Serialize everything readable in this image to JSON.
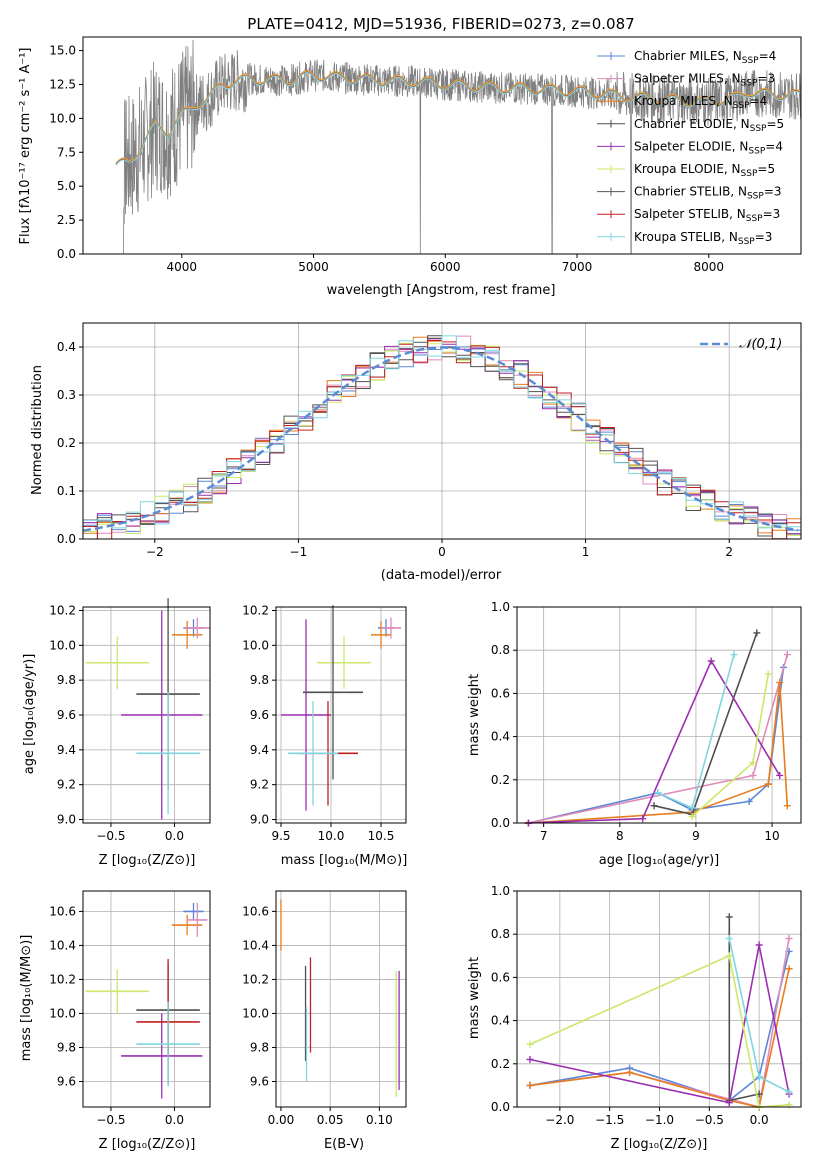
{
  "colors": {
    "chabrier_miles": "#5b87d6",
    "salpeter_miles": "#e08ab8",
    "kroupa_miles": "#e77d1e",
    "chabrier_elodie": "#4f4f4f",
    "salpeter_elodie": "#9a2fb0",
    "kroupa_elodie": "#cbe86a",
    "chabrier_stelib": "#555555",
    "salpeter_stelib": "#c0201e",
    "kroupa_stelib": "#7fd6e0",
    "normal_curve": "#5b8bd4",
    "data_gray": "#808080",
    "grid": "#b0b0b0"
  },
  "chart_data": [
    {
      "id": "spectrum",
      "type": "line",
      "title": "PLATE=0412, MJD=51936, FIBERID=0273, z=0.087",
      "xlabel": "wavelength [Angstrom, rest frame]",
      "ylabel": "Flux [fλ10⁻¹⁷ erg cm⁻² s⁻¹ A⁻¹]",
      "xlim": [
        3250,
        8700
      ],
      "ylim": [
        0,
        16
      ],
      "x_ticks": [
        "4000",
        "5000",
        "6000",
        "7000",
        "8000"
      ],
      "y_ticks": [
        "0.0",
        "2.5",
        "5.0",
        "7.5",
        "10.0",
        "12.5",
        "15.0"
      ],
      "grid": false,
      "legend_placement": "right",
      "series": [
        {
          "name": "Chabrier MILES, N_SSP=4",
          "legend": "Chabrier MILES, N",
          "sub": "SSP",
          "tail": "=4",
          "color_key": "chabrier_miles"
        },
        {
          "name": "Salpeter MILES, N_SSP=3",
          "legend": "Salpeter MILES, N",
          "sub": "SSP",
          "tail": "=3",
          "color_key": "salpeter_miles"
        },
        {
          "name": "Kroupa MILES, N_SSP=4",
          "legend": "Kroupa MILES, N",
          "sub": "SSP",
          "tail": "=4",
          "color_key": "kroupa_miles"
        },
        {
          "name": "Chabrier ELODIE, N_SSP=5",
          "legend": "Chabrier ELODIE, N",
          "sub": "SSP",
          "tail": "=5",
          "color_key": "chabrier_elodie"
        },
        {
          "name": "Salpeter ELODIE, N_SSP=4",
          "legend": "Salpeter ELODIE, N",
          "sub": "SSP",
          "tail": "=4",
          "color_key": "salpeter_elodie"
        },
        {
          "name": "Kroupa ELODIE, N_SSP=5",
          "legend": "Kroupa ELODIE, N",
          "sub": "SSP",
          "tail": "=5",
          "color_key": "kroupa_elodie"
        },
        {
          "name": "Chabrier STELIB, N_SSP=3",
          "legend": "Chabrier STELIB, N",
          "sub": "SSP",
          "tail": "=3",
          "color_key": "chabrier_stelib"
        },
        {
          "name": "Salpeter STELIB, N_SSP=3",
          "legend": "Salpeter STELIB, N",
          "sub": "SSP",
          "tail": "=3",
          "color_key": "salpeter_stelib"
        },
        {
          "name": "Kroupa STELIB, N_SSP=3",
          "legend": "Kroupa STELIB, N",
          "sub": "SSP",
          "tail": "=3",
          "color_key": "kroupa_stelib"
        }
      ],
      "continuum": {
        "x": [
          3500,
          3600,
          3700,
          3800,
          3900,
          4000,
          4100,
          4200,
          4300,
          4500,
          4800,
          5000,
          5200,
          5500,
          5800,
          6000,
          6300,
          6600,
          7000,
          7200,
          7500,
          7800,
          8000,
          8200,
          8300,
          8400,
          8700
        ],
        "y": [
          6.5,
          6.8,
          8.0,
          9.5,
          9.0,
          10.2,
          11.0,
          11.4,
          12.5,
          12.9,
          12.8,
          13.2,
          13.0,
          12.8,
          12.7,
          12.5,
          12.3,
          12.2,
          12.0,
          11.8,
          11.5,
          11.3,
          11.2,
          11.5,
          12.0,
          11.8,
          11.7
        ]
      }
    },
    {
      "id": "residuals",
      "type": "line",
      "xlabel": "(data-model)/error",
      "ylabel": "Normed distribution",
      "xlim": [
        -2.5,
        2.5
      ],
      "ylim": [
        0,
        0.45
      ],
      "x_ticks": [
        "−2",
        "−1",
        "0",
        "1",
        "2"
      ],
      "y_ticks": [
        "0.0",
        "0.1",
        "0.2",
        "0.3",
        "0.4"
      ],
      "grid": true,
      "legend": "𝒩(0,1)",
      "legend_placement": "top-right",
      "normal_curve": {
        "mean": 0,
        "sigma": 1
      }
    },
    {
      "id": "age_vs_z",
      "type": "scatter",
      "xlabel": "Z [log₁₀(Z/Z⊙)]",
      "ylabel": "age  [log₁₀(age/yr)]",
      "xlim": [
        -0.72,
        0.28
      ],
      "ylim": [
        8.98,
        10.22
      ],
      "x_ticks": [
        "−0.5",
        "0.0"
      ],
      "y_ticks": [
        "9.0",
        "9.2",
        "9.4",
        "9.6",
        "9.8",
        "10.0",
        "10.2"
      ],
      "grid": true,
      "errorbars": [
        {
          "x": -0.45,
          "y": 9.9,
          "xerr": 0.25,
          "yerr": 0.15,
          "color_key": "kroupa_elodie"
        },
        {
          "x": -0.1,
          "y": 9.6,
          "xerr": 0.32,
          "yerr": 0.6,
          "color_key": "salpeter_elodie"
        },
        {
          "x": -0.05,
          "y": 9.72,
          "xerr": 0.25,
          "yerr": 0.55,
          "color_key": "chabrier_elodie"
        },
        {
          "x": -0.05,
          "y": 9.38,
          "xerr": 0.25,
          "yerr": 0.35,
          "color_key": "kroupa_stelib"
        },
        {
          "x": 0.15,
          "y": 10.1,
          "xerr": 0.08,
          "yerr": 0.05,
          "color_key": "chabrier_miles"
        },
        {
          "x": 0.1,
          "y": 10.06,
          "xerr": 0.12,
          "yerr": 0.08,
          "color_key": "kroupa_miles"
        },
        {
          "x": 0.18,
          "y": 10.1,
          "xerr": 0.1,
          "yerr": 0.06,
          "color_key": "salpeter_miles"
        }
      ]
    },
    {
      "id": "age_vs_mass",
      "type": "scatter",
      "xlabel": "mass [log₁₀(M/M⊙)]",
      "ylabel": "",
      "xlim": [
        9.45,
        10.75
      ],
      "ylim": [
        8.98,
        10.22
      ],
      "x_ticks": [
        "9.5",
        "10.0",
        "10.5"
      ],
      "y_ticks": [
        "9.0",
        "9.2",
        "9.4",
        "9.6",
        "9.8",
        "10.0",
        "10.2"
      ],
      "grid": true,
      "errorbars": [
        {
          "x": 10.13,
          "y": 9.9,
          "xerr": 0.27,
          "yerr": 0.15,
          "color_key": "kroupa_elodie"
        },
        {
          "x": 9.75,
          "y": 9.6,
          "xerr": 0.25,
          "yerr": 0.55,
          "color_key": "salpeter_elodie"
        },
        {
          "x": 10.02,
          "y": 9.73,
          "xerr": 0.3,
          "yerr": 0.5,
          "color_key": "chabrier_elodie"
        },
        {
          "x": 9.97,
          "y": 9.38,
          "xerr": 0.3,
          "yerr": 0.3,
          "color_key": "salpeter_stelib"
        },
        {
          "x": 9.82,
          "y": 9.38,
          "xerr": 0.25,
          "yerr": 0.3,
          "color_key": "kroupa_stelib"
        },
        {
          "x": 10.55,
          "y": 10.1,
          "xerr": 0.08,
          "yerr": 0.05,
          "color_key": "chabrier_miles"
        },
        {
          "x": 10.5,
          "y": 10.06,
          "xerr": 0.1,
          "yerr": 0.08,
          "color_key": "kroupa_miles"
        },
        {
          "x": 10.6,
          "y": 10.1,
          "xerr": 0.1,
          "yerr": 0.06,
          "color_key": "salpeter_miles"
        }
      ]
    },
    {
      "id": "massweight_vs_age",
      "type": "line",
      "xlabel": "age  [log₁₀(age/yr)]",
      "ylabel": "mass weight",
      "xlim": [
        6.65,
        10.38
      ],
      "ylim": [
        0,
        1.0
      ],
      "x_ticks": [
        "7",
        "8",
        "9",
        "10"
      ],
      "y_ticks": [
        "0.0",
        "0.2",
        "0.4",
        "0.6",
        "0.8",
        "1.0"
      ],
      "grid": true,
      "series": [
        {
          "color_key": "chabrier_miles",
          "x": [
            6.8,
            8.5,
            8.95,
            9.7,
            9.95,
            10.15
          ],
          "y": [
            0.0,
            0.14,
            0.06,
            0.1,
            0.18,
            0.72
          ]
        },
        {
          "color_key": "salpeter_miles",
          "x": [
            6.8,
            9.75,
            10.2
          ],
          "y": [
            0.0,
            0.22,
            0.78
          ]
        },
        {
          "color_key": "kroupa_miles",
          "x": [
            6.8,
            8.95,
            9.95,
            10.1,
            10.2
          ],
          "y": [
            0.0,
            0.05,
            0.18,
            0.65,
            0.08
          ]
        },
        {
          "color_key": "chabrier_elodie",
          "x": [
            8.45,
            8.95,
            9.8
          ],
          "y": [
            0.08,
            0.04,
            0.88
          ]
        },
        {
          "color_key": "salpeter_elodie",
          "x": [
            6.8,
            8.3,
            9.2,
            10.1
          ],
          "y": [
            0.0,
            0.02,
            0.75,
            0.22
          ]
        },
        {
          "color_key": "kroupa_elodie",
          "x": [
            8.95,
            9.75,
            9.95
          ],
          "y": [
            0.03,
            0.28,
            0.69
          ]
        },
        {
          "color_key": "kroupa_stelib",
          "x": [
            8.5,
            8.95,
            9.5
          ],
          "y": [
            0.14,
            0.07,
            0.78
          ]
        }
      ]
    },
    {
      "id": "mass_vs_z",
      "type": "scatter",
      "xlabel": "Z [log₁₀(Z/Z⊙)]",
      "ylabel": "mass [log₁₀(M/M⊙)]",
      "xlim": [
        -0.72,
        0.28
      ],
      "ylim": [
        9.45,
        10.72
      ],
      "x_ticks": [
        "−0.5",
        "0.0"
      ],
      "y_ticks": [
        "9.6",
        "9.8",
        "10.0",
        "10.2",
        "10.4",
        "10.6"
      ],
      "grid": true,
      "errorbars": [
        {
          "x": -0.45,
          "y": 10.13,
          "xerr": 0.25,
          "yerr": 0.13,
          "color_key": "kroupa_elodie"
        },
        {
          "x": -0.1,
          "y": 9.75,
          "xerr": 0.32,
          "yerr": 0.25,
          "color_key": "salpeter_elodie"
        },
        {
          "x": -0.05,
          "y": 10.02,
          "xerr": 0.25,
          "yerr": 0.27,
          "color_key": "chabrier_elodie"
        },
        {
          "x": -0.05,
          "y": 9.95,
          "xerr": 0.25,
          "yerr": 0.37,
          "color_key": "salpeter_stelib"
        },
        {
          "x": -0.05,
          "y": 9.82,
          "xerr": 0.25,
          "yerr": 0.25,
          "color_key": "kroupa_stelib"
        },
        {
          "x": 0.15,
          "y": 10.6,
          "xerr": 0.08,
          "yerr": 0.05,
          "color_key": "chabrier_miles"
        },
        {
          "x": 0.1,
          "y": 10.52,
          "xerr": 0.12,
          "yerr": 0.06,
          "color_key": "kroupa_miles"
        },
        {
          "x": 0.18,
          "y": 10.55,
          "xerr": 0.08,
          "yerr": 0.1,
          "color_key": "salpeter_miles"
        }
      ]
    },
    {
      "id": "mass_vs_ebv",
      "type": "scatter",
      "xlabel": "E(B-V)",
      "ylabel": "",
      "xlim": [
        -0.005,
        0.127
      ],
      "ylim": [
        9.45,
        10.72
      ],
      "x_ticks": [
        "0.00",
        "0.05",
        "0.10"
      ],
      "y_ticks": [
        "9.6",
        "9.8",
        "10.0",
        "10.2",
        "10.4",
        "10.6"
      ],
      "grid": true,
      "errorbars": [
        {
          "x": 0.0,
          "y": 10.52,
          "xerr": 0,
          "yerr": 0.15,
          "color_key": "kroupa_miles"
        },
        {
          "x": 0.025,
          "y": 10.0,
          "xerr": 0,
          "yerr": 0.28,
          "color_key": "chabrier_elodie"
        },
        {
          "x": 0.026,
          "y": 9.82,
          "xerr": 0,
          "yerr": 0.22,
          "color_key": "kroupa_stelib"
        },
        {
          "x": 0.03,
          "y": 10.05,
          "xerr": 0,
          "yerr": 0.28,
          "color_key": "salpeter_stelib"
        },
        {
          "x": 0.117,
          "y": 9.88,
          "xerr": 0,
          "yerr": 0.37,
          "color_key": "kroupa_elodie"
        },
        {
          "x": 0.12,
          "y": 9.9,
          "xerr": 0,
          "yerr": 0.35,
          "color_key": "salpeter_elodie"
        }
      ]
    },
    {
      "id": "massweight_vs_z",
      "type": "line",
      "xlabel": "Z [log₁₀(Z/Z⊙)]",
      "ylabel": "mass weight",
      "xlim": [
        -2.43,
        0.42
      ],
      "ylim": [
        0,
        1.0
      ],
      "x_ticks": [
        "−2.0",
        "−1.5",
        "−1.0",
        "−0.5",
        "0.0"
      ],
      "y_ticks": [
        "0.0",
        "0.2",
        "0.4",
        "0.6",
        "0.8",
        "1.0"
      ],
      "grid": true,
      "series": [
        {
          "color_key": "chabrier_miles",
          "x": [
            -2.3,
            -1.3,
            -0.3,
            0.0,
            0.3
          ],
          "y": [
            0.1,
            0.18,
            0.03,
            0.14,
            0.72
          ]
        },
        {
          "color_key": "salpeter_miles",
          "x": [
            -2.3,
            -1.3,
            0.0,
            0.3
          ],
          "y": [
            0.1,
            0.16,
            0.0,
            0.78
          ]
        },
        {
          "color_key": "kroupa_miles",
          "x": [
            -2.3,
            -1.3,
            -0.3,
            0.0,
            0.3
          ],
          "y": [
            0.1,
            0.16,
            0.03,
            0.0,
            0.64
          ]
        },
        {
          "color_key": "chabrier_elodie",
          "x": [
            -0.3,
            -0.3,
            0.0
          ],
          "y": [
            0.88,
            0.03,
            0.06
          ]
        },
        {
          "color_key": "salpeter_elodie",
          "x": [
            -2.3,
            -0.3,
            0.0,
            0.3
          ],
          "y": [
            0.22,
            0.02,
            0.75,
            0.06
          ]
        },
        {
          "color_key": "kroupa_elodie",
          "x": [
            -2.3,
            -0.3,
            0.0,
            0.3
          ],
          "y": [
            0.29,
            0.7,
            0.0,
            0.01
          ]
        },
        {
          "color_key": "kroupa_stelib",
          "x": [
            -0.3,
            0.0,
            0.3
          ],
          "y": [
            0.78,
            0.14,
            0.07
          ]
        }
      ]
    }
  ]
}
